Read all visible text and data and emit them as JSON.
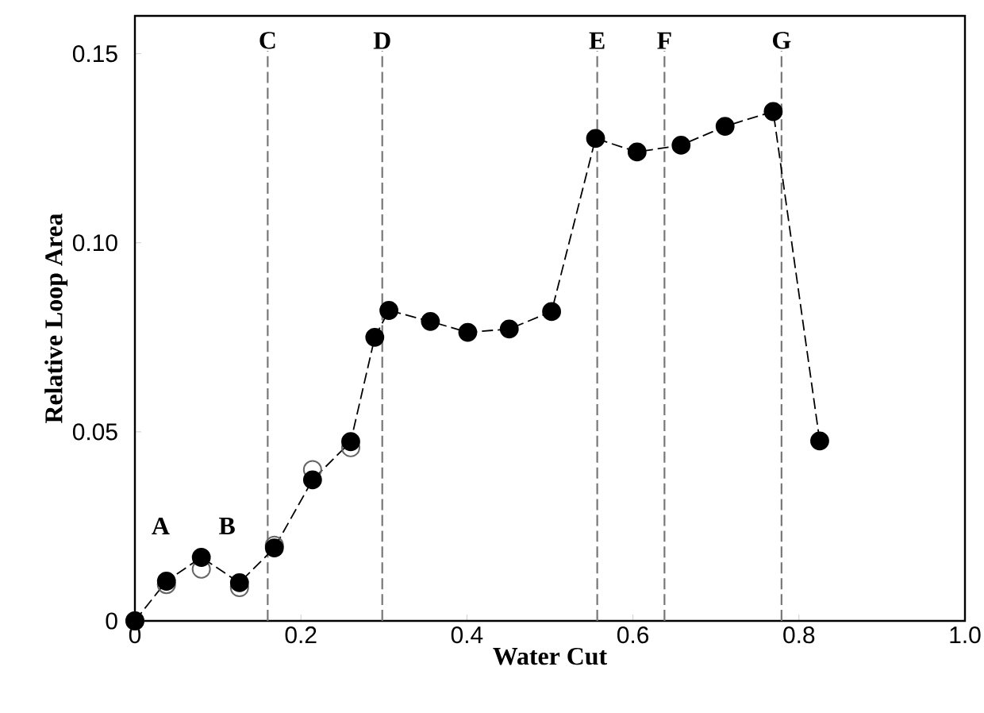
{
  "chart_data": {
    "type": "line",
    "xlabel": "Water Cut",
    "ylabel": "Relative  Loop  Area",
    "x": [
      0,
      0.038,
      0.08,
      0.126,
      0.168,
      0.214,
      0.26,
      0.289,
      0.306,
      0.356,
      0.401,
      0.451,
      0.502,
      0.555,
      0.605,
      0.658,
      0.711,
      0.769,
      0.825
    ],
    "series": [
      {
        "type": "scatter",
        "color": "#666666",
        "values": [
          0,
          0.0096,
          0.0137,
          0.0088,
          0.02,
          0.04,
          0.0458,
          null,
          null,
          null,
          null,
          null,
          null,
          null,
          null,
          null,
          null,
          null,
          null
        ]
      },
      {
        "color": "#000000",
        "values": [
          0,
          0.0105,
          0.0168,
          0.0101,
          0.0193,
          0.0373,
          0.0474,
          0.075,
          0.0821,
          0.0792,
          0.0763,
          0.0772,
          0.0818,
          0.1276,
          0.124,
          0.1258,
          0.1308,
          0.1347,
          0.0476
        ]
      }
    ],
    "xlim": [
      0,
      1.0
    ],
    "ylim": [
      0,
      0.16
    ],
    "xticks": [
      0,
      {
        "value": 0.2,
        "label": "0.2"
      },
      {
        "value": 0.4,
        "label": "0.4"
      },
      {
        "value": 0.6,
        "label": "0.6"
      },
      {
        "value": 0.8,
        "label": "0.8"
      },
      {
        "value": 1.0,
        "label": "1.0"
      }
    ],
    "yticks": [
      0,
      {
        "value": 0.05,
        "label": "0.05"
      },
      {
        "value": 0.1,
        "label": "0.10"
      },
      {
        "value": 0.15,
        "label": "0.15"
      }
    ],
    "marker": "circle",
    "line_style": "dashed",
    "ref_lines": [
      {
        "axis": "x",
        "value": 0.16,
        "label": "C",
        "color": "#777777",
        "line_style": "dashed"
      },
      {
        "axis": "x",
        "value": 0.298,
        "label": "D",
        "color": "#777777",
        "line_style": "dashed"
      },
      {
        "axis": "x",
        "value": 0.557,
        "label": "E",
        "color": "#777777",
        "line_style": "dashed"
      },
      {
        "axis": "x",
        "value": 0.638,
        "label": "F",
        "color": "#777777",
        "line_style": "dashed"
      },
      {
        "axis": "x",
        "value": 0.779,
        "label": "G",
        "color": "#777777",
        "line_style": "dashed"
      }
    ],
    "annotations": [
      "A",
      "B"
    ]
  }
}
